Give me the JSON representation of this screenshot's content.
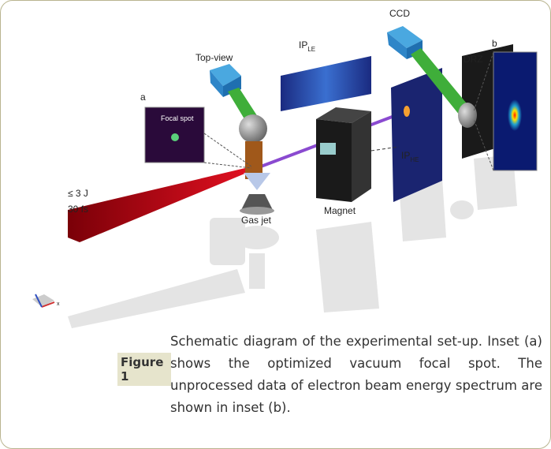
{
  "figure": {
    "labels": {
      "top_view": "Top-view",
      "ccd": "CCD",
      "drz": "DRZ",
      "inset_b": "b",
      "inset_a": "a",
      "focal_spot": "Focal spot",
      "ip_le": {
        "main": "IP",
        "sub": "LE"
      },
      "ip_he": {
        "main": "IP",
        "sub": "HE"
      },
      "energy": "≤ 3 J",
      "duration": "30 fs",
      "gas_jet": "Gas jet",
      "magnet": "Magnet",
      "axis_x": "x"
    },
    "caption": {
      "label": "Figure 1",
      "text": "Schematic diagram of the experimental set-up. Inset (a) shows the optimized vacuum focal spot. The unprocessed data of electron beam energy spectrum are shown in inset (b)."
    }
  }
}
